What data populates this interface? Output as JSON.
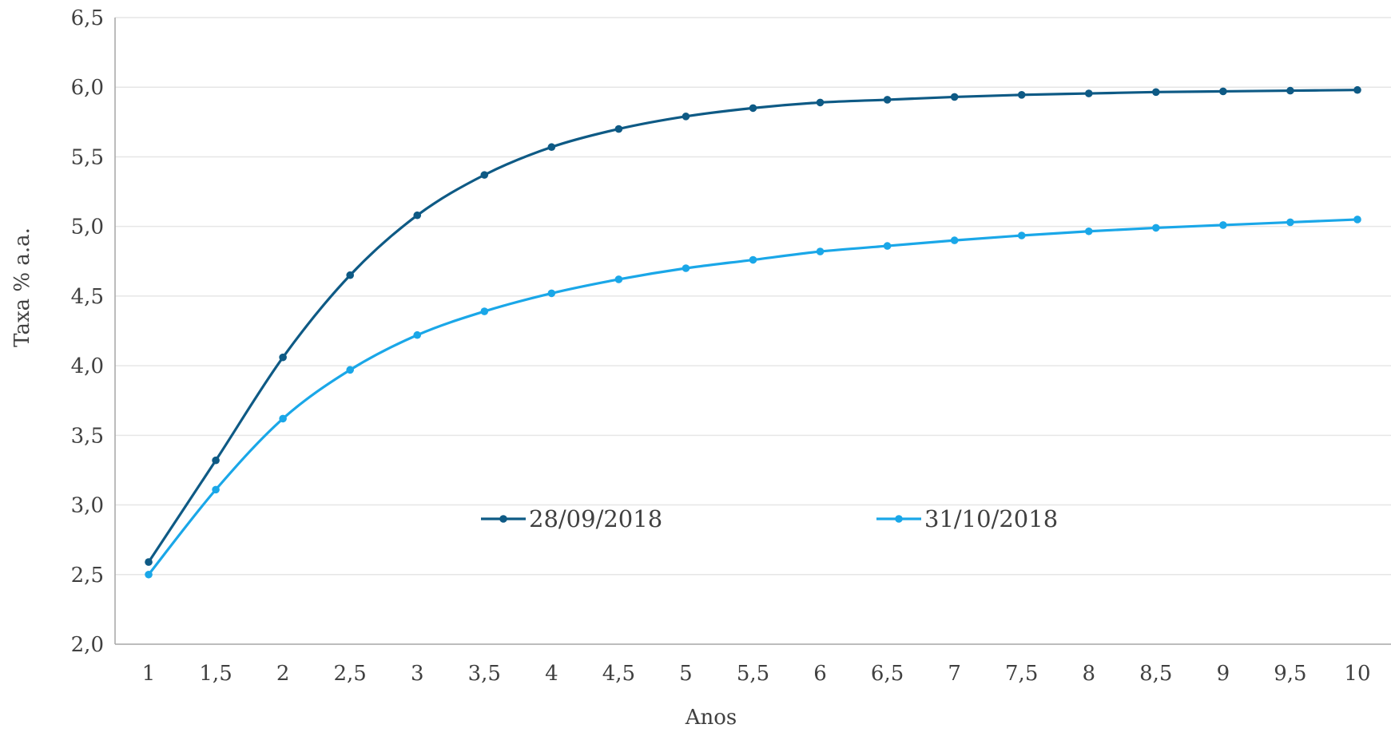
{
  "chart_data": {
    "type": "line",
    "xlabel": "Anos",
    "ylabel": "Taxa % a.a.",
    "categories": [
      "1",
      "1,5",
      "2",
      "2,5",
      "3",
      "3,5",
      "4",
      "4,5",
      "5",
      "5,5",
      "6",
      "6,5",
      "7",
      "7,5",
      "8",
      "8,5",
      "9",
      "9,5",
      "10"
    ],
    "ylim": [
      2.0,
      6.5
    ],
    "y_ticks": [
      2.0,
      2.5,
      3.0,
      3.5,
      4.0,
      4.5,
      5.0,
      5.5,
      6.0,
      6.5
    ],
    "y_tick_labels": [
      "2,0",
      "2,5",
      "3,0",
      "3,5",
      "4,0",
      "4,5",
      "5,0",
      "5,5",
      "6,0",
      "6,5"
    ],
    "grid": true,
    "legend_position": "center",
    "series": [
      {
        "name": "28/09/2018",
        "color": "#0e5a85",
        "values": [
          2.59,
          3.32,
          4.06,
          4.65,
          5.08,
          5.37,
          5.57,
          5.7,
          5.79,
          5.85,
          5.89,
          5.91,
          5.93,
          5.945,
          5.955,
          5.965,
          5.97,
          5.975,
          5.98
        ]
      },
      {
        "name": "31/10/2018",
        "color": "#1aa7e8",
        "values": [
          2.5,
          3.11,
          3.62,
          3.97,
          4.22,
          4.39,
          4.52,
          4.62,
          4.7,
          4.76,
          4.82,
          4.86,
          4.9,
          4.935,
          4.965,
          4.99,
          5.01,
          5.03,
          5.05
        ]
      }
    ]
  }
}
